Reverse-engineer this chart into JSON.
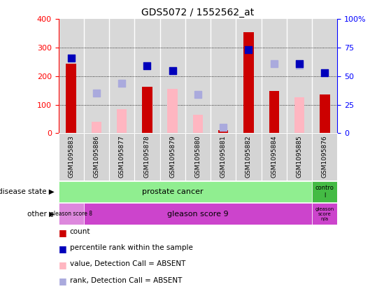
{
  "title": "GDS5072 / 1552562_at",
  "samples": [
    "GSM1095883",
    "GSM1095886",
    "GSM1095877",
    "GSM1095878",
    "GSM1095879",
    "GSM1095880",
    "GSM1095881",
    "GSM1095882",
    "GSM1095884",
    "GSM1095885",
    "GSM1095876"
  ],
  "count_values": [
    243,
    0,
    0,
    163,
    0,
    0,
    10,
    355,
    148,
    0,
    135
  ],
  "percentile_rank": [
    66,
    0,
    0,
    59,
    55,
    0,
    0,
    73,
    0,
    61,
    53
  ],
  "absent_value": [
    0,
    40,
    85,
    0,
    155,
    65,
    0,
    0,
    0,
    125,
    0
  ],
  "absent_rank": [
    0,
    140,
    175,
    0,
    220,
    135,
    20,
    0,
    245,
    240,
    0
  ],
  "ylim_left": [
    0,
    400
  ],
  "ylim_right": [
    0,
    100
  ],
  "yticks_left": [
    0,
    100,
    200,
    300,
    400
  ],
  "yticks_right": [
    0,
    25,
    50,
    75,
    100
  ],
  "yticklabels_right": [
    "0",
    "25",
    "50",
    "75",
    "100%"
  ],
  "bar_color_red": "#cc0000",
  "bar_color_pink": "#ffb6c1",
  "dot_color_blue": "#0000bb",
  "dot_color_lightblue": "#aaaadd",
  "bg_color_plot": "#d8d8d8",
  "bar_width": 0.4,
  "dot_size": 55,
  "legend_items": [
    [
      "#cc0000",
      "count"
    ],
    [
      "#0000bb",
      "percentile rank within the sample"
    ],
    [
      "#ffb6c1",
      "value, Detection Call = ABSENT"
    ],
    [
      "#aaaadd",
      "rank, Detection Call = ABSENT"
    ]
  ]
}
